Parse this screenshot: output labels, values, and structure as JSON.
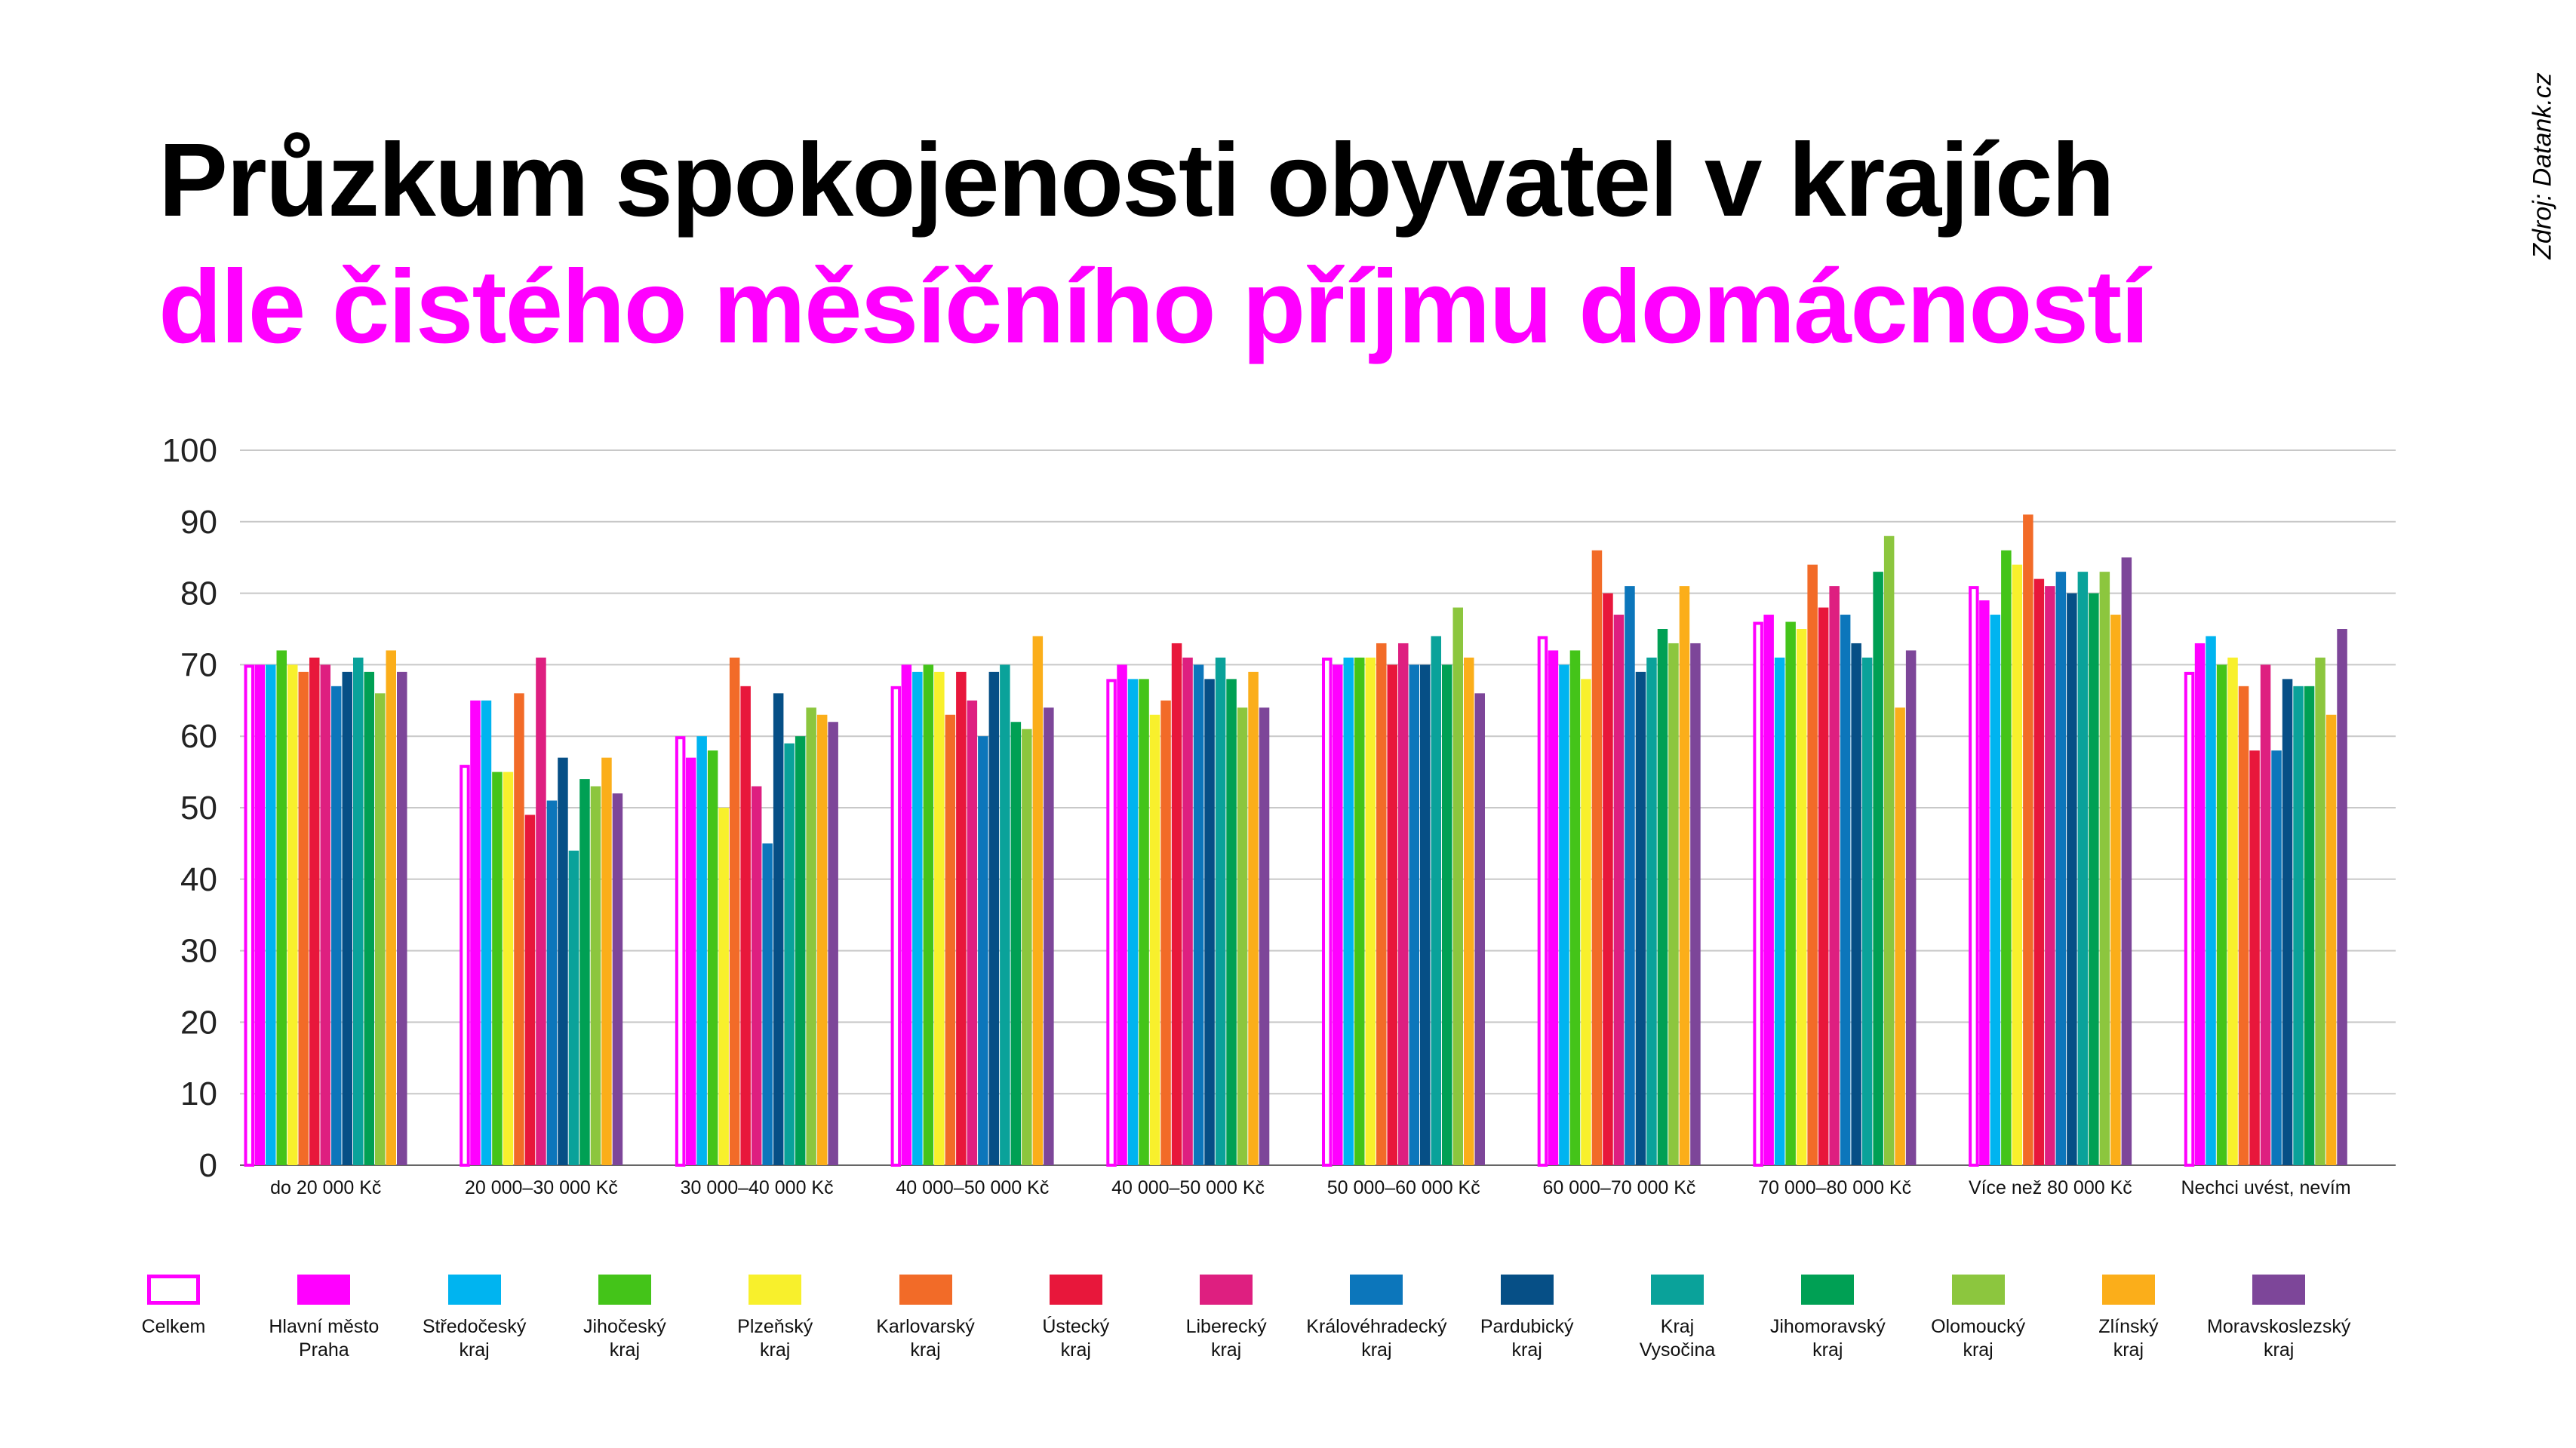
{
  "title": "Průzkum spokojenosti obyvatel v krajích",
  "subtitle": "dle čistého měsíčního příjmu domácností",
  "source": "Zdroj: Datank.cz",
  "colors": {
    "title": "#000000",
    "subtitle": "#ff00ff",
    "grid": "#c8c8c8",
    "axis": "#666666"
  },
  "chart_data": {
    "type": "bar",
    "ylim": [
      0,
      100
    ],
    "yticks": [
      "0",
      "10",
      "20",
      "30",
      "40",
      "50",
      "60",
      "70",
      "80",
      "90",
      "100"
    ],
    "grid": true,
    "legend_position": "bottom",
    "categories": [
      "do 20 000 Kč",
      "20 000–30 000 Kč",
      "30 000–40 000 Kč",
      "40 000–50 000 Kč",
      "40 000–50 000 Kč",
      "50 000–60 000 Kč",
      "60 000–70 000 Kč",
      "70 000–80 000 Kč",
      "Více než 80 000 Kč",
      "Nechci uvést, nevím"
    ],
    "series": [
      {
        "name": "Celkem",
        "color": "#ff00ff",
        "outline": true,
        "values": [
          70,
          56,
          60,
          67,
          68,
          71,
          74,
          76,
          81,
          69
        ]
      },
      {
        "name": "Hlavní město\nPraha",
        "color": "#ff00ff",
        "values": [
          70,
          65,
          57,
          70,
          70,
          70,
          72,
          77,
          79,
          73
        ]
      },
      {
        "name": "Středočeský\nkraj",
        "color": "#00b4f0",
        "values": [
          70,
          65,
          60,
          69,
          68,
          71,
          70,
          71,
          77,
          74
        ]
      },
      {
        "name": "Jihočeský\nkraj",
        "color": "#44c419",
        "values": [
          72,
          55,
          58,
          70,
          68,
          71,
          72,
          76,
          86,
          70
        ]
      },
      {
        "name": "Plzeňský\nkraj",
        "color": "#f8f02c",
        "values": [
          70,
          55,
          50,
          69,
          63,
          71,
          68,
          75,
          84,
          71
        ]
      },
      {
        "name": "Karlovarský\nkraj",
        "color": "#f26b28",
        "values": [
          69,
          66,
          71,
          63,
          65,
          73,
          86,
          84,
          91,
          67
        ]
      },
      {
        "name": "Ústecký\nkraj",
        "color": "#e8173b",
        "values": [
          71,
          49,
          67,
          69,
          73,
          70,
          80,
          78,
          82,
          58
        ]
      },
      {
        "name": "Liberecký\nkraj",
        "color": "#de1f80",
        "values": [
          70,
          71,
          53,
          65,
          71,
          73,
          77,
          81,
          81,
          70
        ]
      },
      {
        "name": "Královéhradecký\nkraj",
        "color": "#0c76bb",
        "values": [
          67,
          51,
          45,
          60,
          70,
          70,
          81,
          77,
          83,
          58
        ]
      },
      {
        "name": "Pardubický\nkraj",
        "color": "#064f86",
        "values": [
          69,
          57,
          66,
          69,
          68,
          70,
          69,
          73,
          80,
          68
        ]
      },
      {
        "name": "Kraj\nVysočina",
        "color": "#0aa29a",
        "values": [
          71,
          44,
          59,
          70,
          71,
          74,
          71,
          71,
          83,
          67
        ]
      },
      {
        "name": "Jihomoravský\nkraj",
        "color": "#00a054",
        "values": [
          69,
          54,
          60,
          62,
          68,
          70,
          75,
          83,
          80,
          67
        ]
      },
      {
        "name": "Olomoucký\nkraj",
        "color": "#8cc63e",
        "values": [
          66,
          53,
          64,
          61,
          64,
          78,
          73,
          88,
          83,
          71
        ]
      },
      {
        "name": "Zlínský\nkraj",
        "color": "#fbae1a",
        "values": [
          72,
          57,
          63,
          74,
          69,
          71,
          81,
          64,
          77,
          63
        ]
      },
      {
        "name": "Moravskoslezský\nkraj",
        "color": "#7d4699",
        "values": [
          69,
          52,
          62,
          64,
          64,
          66,
          73,
          72,
          85,
          75
        ]
      }
    ]
  }
}
